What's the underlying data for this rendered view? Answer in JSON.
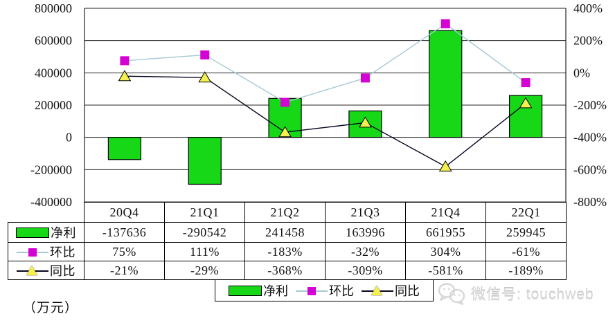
{
  "watermark": {
    "text": "微信号: touchweb"
  },
  "legend": {
    "items": [
      {
        "label": "净利"
      },
      {
        "label": "环比"
      },
      {
        "label": "同比"
      }
    ]
  },
  "table": {
    "headers": [
      "20Q4",
      "21Q1",
      "21Q2",
      "21Q3",
      "21Q4",
      "22Q1"
    ],
    "rows": [
      {
        "label": "净利",
        "values": [
          "-137636",
          "-290542",
          "241458",
          "163996",
          "661955",
          "259945"
        ]
      },
      {
        "label": "环比",
        "values": [
          "75%",
          "111%",
          "-183%",
          "-32%",
          "304%",
          "-61%"
        ]
      },
      {
        "label": "同比",
        "values": [
          "-21%",
          "-29%",
          "-368%",
          "-309%",
          "-581%",
          "-189%"
        ]
      }
    ]
  },
  "chart_data": {
    "type": "combo-bar-line",
    "categories": [
      "20Q4",
      "21Q1",
      "21Q2",
      "21Q3",
      "21Q4",
      "22Q1"
    ],
    "series": [
      {
        "name": "净利",
        "chart": "bar",
        "axis": "left",
        "color": "#16D816",
        "values": [
          -137636,
          -290542,
          241458,
          163996,
          661955,
          259945
        ]
      },
      {
        "name": "环比",
        "chart": "line",
        "axis": "right",
        "line_color": "#A5C9D5",
        "marker": "square",
        "marker_color": "#D403D4",
        "values": [
          75,
          111,
          -183,
          -32,
          304,
          -61
        ],
        "unit": "%"
      },
      {
        "name": "同比",
        "chart": "line",
        "axis": "right",
        "line_color": "#05051E",
        "marker": "triangle",
        "marker_color": "#F4F04F",
        "marker_border": "#000000",
        "values": [
          -21,
          -29,
          -368,
          -309,
          -581,
          -189
        ],
        "unit": "%"
      }
    ],
    "left_axis": {
      "unit": "（万元）",
      "min": -400000,
      "max": 800000,
      "tick_step": 200000,
      "ticks": [
        "800000",
        "600000",
        "400000",
        "200000",
        "0",
        "-200000",
        "-400000"
      ]
    },
    "right_axis": {
      "min": -800,
      "max": 400,
      "tick_step": 200,
      "ticks": [
        "400%",
        "200%",
        "0%",
        "-200%",
        "-400%",
        "-600%",
        "-800%"
      ]
    },
    "grid": true,
    "legend_position": "bottom"
  }
}
